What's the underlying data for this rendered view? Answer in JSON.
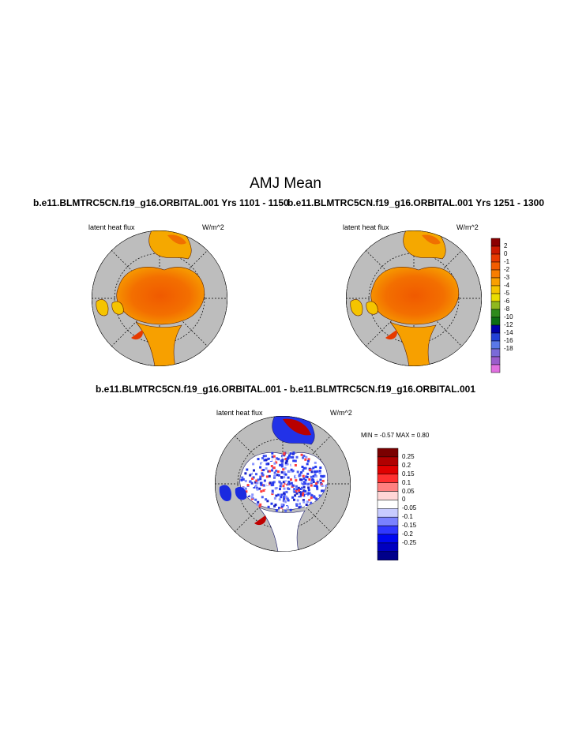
{
  "figure": {
    "title": "AMJ Mean",
    "panel_left_title": "b.e11.BLMTRC5CN.f19_g16.ORBITAL.001  Yrs 1101 - 1150",
    "panel_right_title": "b.e11.BLMTRC5CN.f19_g16.ORBITAL.001  Yrs 1251 - 1300",
    "diff_title": "b.e11.BLMTRC5CN.f19_g16.ORBITAL.001 - b.e11.BLMTRC5CN.f19_g16.ORBITAL.001"
  },
  "panels": {
    "left": {
      "variable": "latent heat flux",
      "units": "W/m^2"
    },
    "right": {
      "variable": "latent heat flux",
      "units": "W/m^2"
    },
    "diff": {
      "variable": "latent heat flux",
      "units": "W/m^2",
      "minmax": "MIN =  -0.57 MAX =   0.80"
    }
  },
  "colorbar_main": {
    "labels": [
      "2",
      "0",
      "-1",
      "-2",
      "-3",
      "-4",
      "-5",
      "-6",
      "-8",
      "-10",
      "-12",
      "-14",
      "-16",
      "-18"
    ],
    "colors": [
      "#8b0000",
      "#cc1a00",
      "#e83a00",
      "#f25c00",
      "#f77d00",
      "#f99f00",
      "#f5c400",
      "#eadd00",
      "#8fb81e",
      "#2e8b1c",
      "#0d6e14",
      "#0000a8",
      "#2240d8",
      "#5a78e8",
      "#7a6ad8",
      "#9a5ccc",
      "#e070e0"
    ]
  },
  "colorbar_diff": {
    "labels": [
      "0.25",
      "0.2",
      "0.15",
      "0.1",
      "0.05",
      "0",
      "-0.05",
      "-0.1",
      "-0.15",
      "-0.2",
      "-0.25"
    ],
    "colors": [
      "#7a0000",
      "#b00000",
      "#e00000",
      "#ff3030",
      "#ff8080",
      "#ffd6d6",
      "#ffffff",
      "#c8ccff",
      "#7a82ff",
      "#3038ff",
      "#0008f0",
      "#0000c0",
      "#00008a"
    ]
  }
}
